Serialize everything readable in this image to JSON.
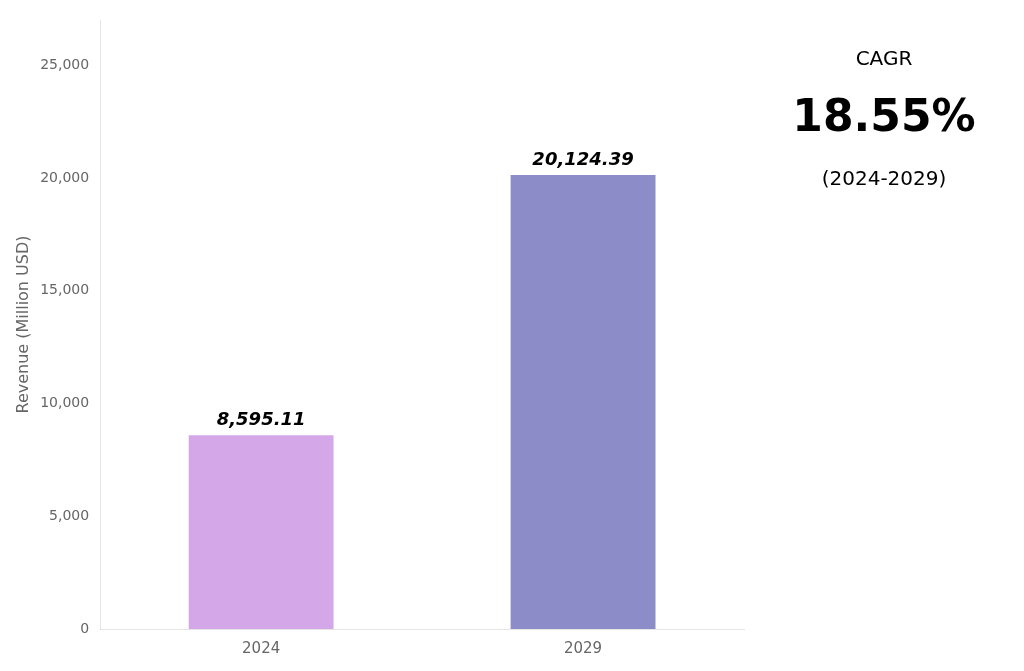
{
  "chart_data": {
    "type": "bar",
    "categories": [
      "2024",
      "2029"
    ],
    "values": [
      8595.11,
      20124.39
    ],
    "value_labels": [
      "8,595.11",
      "20,124.39"
    ],
    "data_labels": true,
    "colors": [
      "#d4a8e8",
      "#8b8cc8"
    ],
    "ylabel": "Revenue (Million USD)",
    "ylim": [
      0,
      27000
    ],
    "yticks": [
      0,
      {
        "value": 5000,
        "label": "5,000"
      },
      {
        "value": 10000,
        "label": "10,000"
      },
      {
        "value": 15000,
        "label": "15,000"
      },
      {
        "value": 20000,
        "label": "20,000"
      },
      {
        "value": 25000,
        "label": "25,000"
      }
    ],
    "grid": false,
    "legend": false,
    "annotations": [
      "CAGR",
      "18.55%",
      "(2024-2029)"
    ]
  }
}
